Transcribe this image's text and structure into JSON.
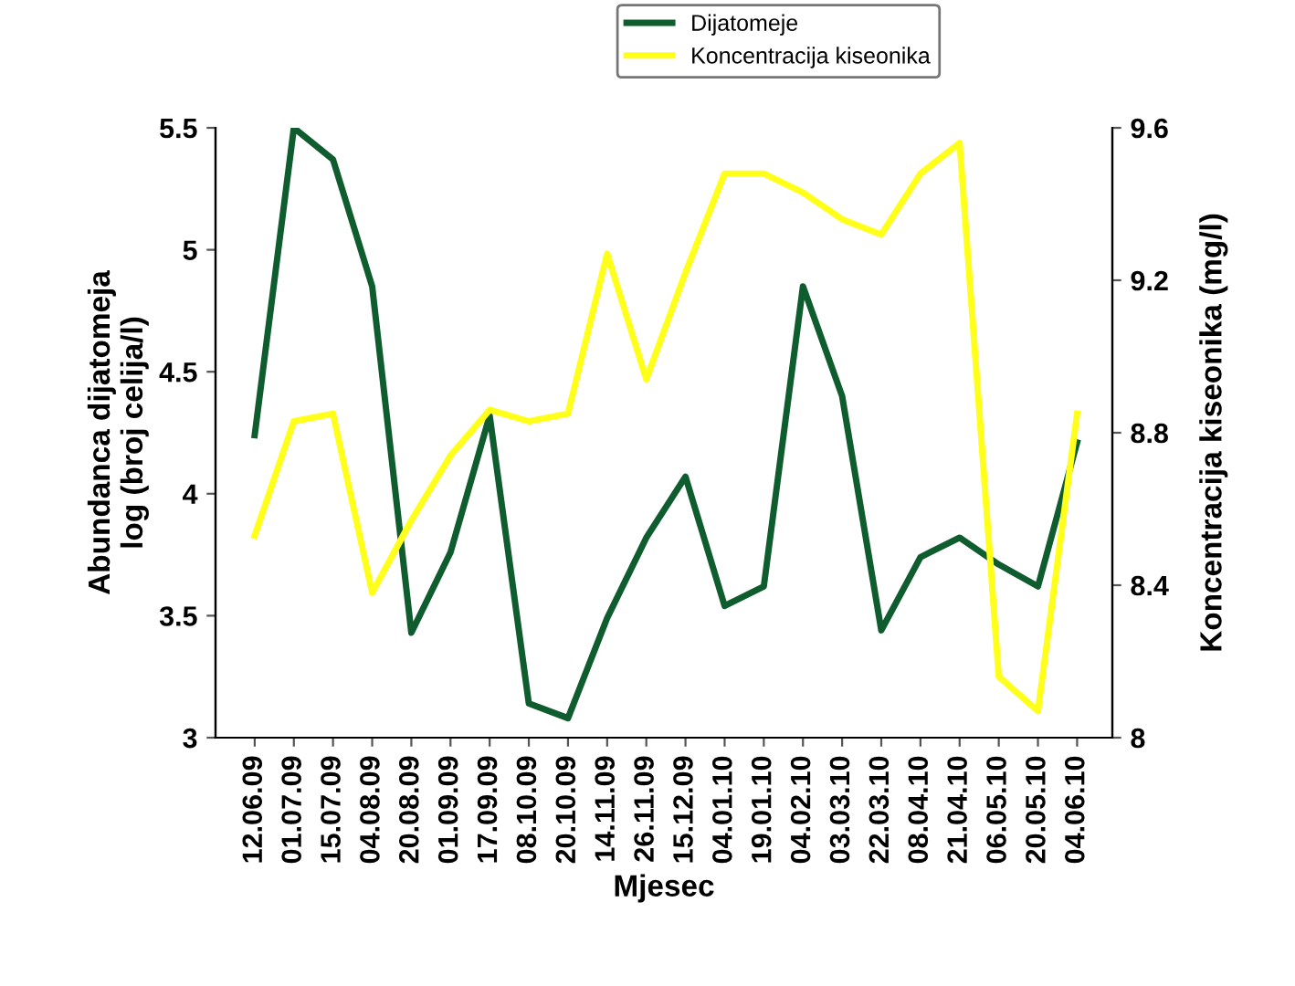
{
  "chart_data": {
    "type": "line",
    "xlabel": "Mjesec",
    "ylabel": "Abundanca dijatomeja\nlog (broj celija/l)",
    "y2label": "Koncentracija kiseonika (mg/l)",
    "categories": [
      "12.06.09",
      "01.07.09",
      "15.07.09",
      "04.08.09",
      "20.08.09",
      "01.09.09",
      "17.09.09",
      "08.10.09",
      "20.10.09",
      "14.11.09",
      "26.11.09",
      "15.12.09",
      "04.01.10",
      "19.01.10",
      "04.02.10",
      "03.03.10",
      "22.03.10",
      "08.04.10",
      "21.04.10",
      "06.05.10",
      "20.05.10",
      "04.06.10"
    ],
    "series": [
      {
        "name": "Dijatomeje",
        "color": "#0f5c2e",
        "values": [
          4.24,
          5.5,
          5.37,
          4.85,
          3.43,
          3.76,
          4.32,
          3.14,
          3.08,
          3.49,
          3.82,
          4.07,
          3.54,
          3.62,
          4.85,
          4.4,
          3.44,
          3.74,
          3.82,
          3.71,
          3.62,
          4.21
        ]
      },
      {
        "name": "Koncentracija kiseonika",
        "color": "#ffff1a",
        "axis": "y2",
        "values": [
          8.53,
          8.83,
          8.85,
          8.38,
          8.57,
          8.74,
          8.86,
          8.83,
          8.85,
          9.27,
          8.94,
          9.22,
          9.48,
          9.48,
          9.43,
          9.36,
          9.32,
          9.48,
          9.56,
          8.16,
          8.07,
          8.85
        ]
      }
    ],
    "ylim": [
      3,
      5.5
    ],
    "yticks": [
      3,
      3.5,
      4,
      4.5,
      5,
      5.5
    ],
    "y2lim": [
      8,
      9.6
    ],
    "y2ticks": [
      8,
      8.4,
      8.8,
      9.2,
      9.6
    ],
    "legend": "top right",
    "grid": false
  }
}
